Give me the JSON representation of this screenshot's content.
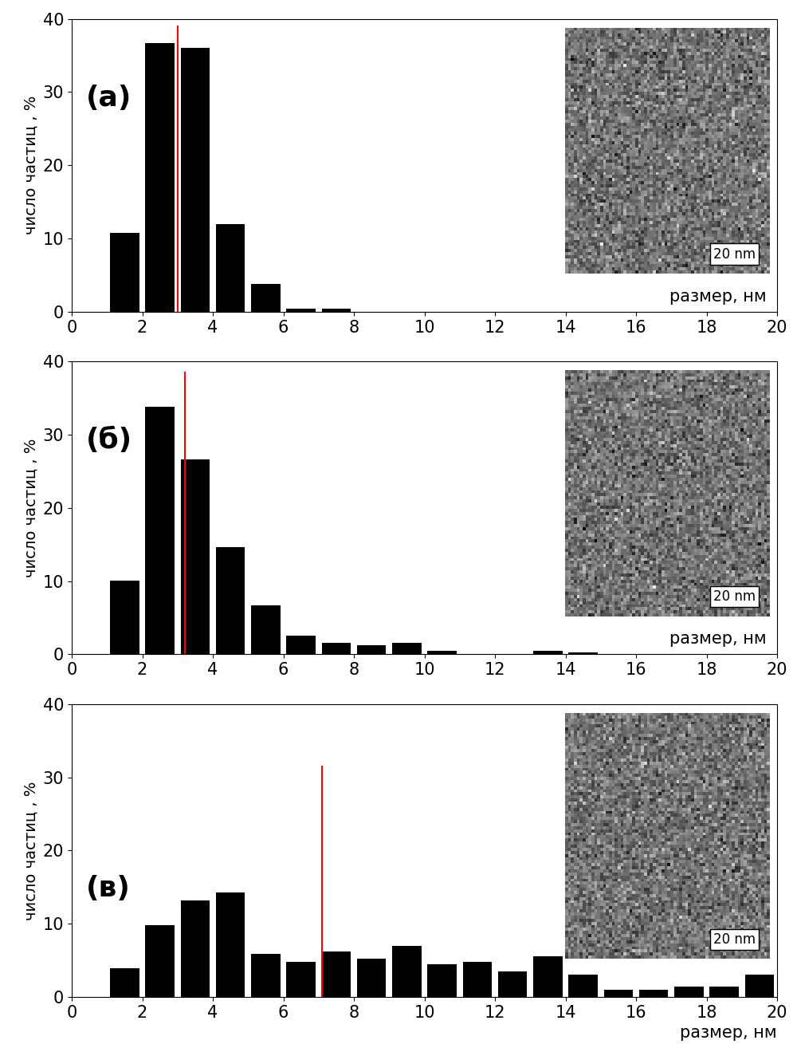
{
  "chart_data": [
    {
      "type": "histogram",
      "bins": [
        1,
        2,
        3,
        4,
        5,
        6,
        7,
        8,
        9,
        10,
        11,
        12,
        13,
        14,
        15,
        16,
        17,
        18,
        19,
        20
      ],
      "values": [
        10.8,
        36.7,
        36.0,
        12.0,
        3.8,
        0.4,
        0.4,
        0,
        0,
        0,
        0,
        0,
        0,
        0,
        0,
        0,
        0,
        0,
        0
      ],
      "color": "#000000",
      "x_label": "размер, нм",
      "y_label": "число частиц , %",
      "annotations": [
        "(а)",
        "20 nm"
      ],
      "mean_line": {
        "x": 3.0,
        "ymax": 39,
        "color": "#ff0000"
      },
      "xlim": [
        0,
        20
      ],
      "xticks": [
        0,
        2,
        4,
        6,
        8,
        10,
        12,
        14,
        16,
        18,
        20
      ],
      "ylim": [
        0,
        40
      ],
      "yticks": [
        0,
        10,
        20,
        30,
        40
      ],
      "grid": false
    },
    {
      "type": "histogram",
      "bins": [
        1,
        2,
        3,
        4,
        5,
        6,
        7,
        8,
        9,
        10,
        11,
        12,
        13,
        14,
        15,
        16,
        17,
        18,
        19,
        20
      ],
      "values": [
        10.1,
        33.8,
        26.6,
        14.6,
        6.7,
        2.6,
        1.6,
        1.3,
        1.6,
        0.5,
        0,
        0,
        0.5,
        0.3,
        0,
        0,
        0,
        0,
        0
      ],
      "color": "#000000",
      "x_label": "размер, нм",
      "y_label": "число частиц , %",
      "annotations": [
        "(б)",
        "20 nm"
      ],
      "mean_line": {
        "x": 3.2,
        "ymax": 38.5,
        "color": "#ff0000"
      },
      "xlim": [
        0,
        20
      ],
      "xticks": [
        0,
        2,
        4,
        6,
        8,
        10,
        12,
        14,
        16,
        18,
        20
      ],
      "ylim": [
        0,
        40
      ],
      "yticks": [
        0,
        10,
        20,
        30,
        40
      ],
      "grid": false
    },
    {
      "type": "histogram",
      "bins": [
        1,
        2,
        3,
        4,
        5,
        6,
        7,
        8,
        9,
        10,
        11,
        12,
        13,
        14,
        15,
        16,
        17,
        18,
        19,
        20
      ],
      "values": [
        3.9,
        9.8,
        13.2,
        14.3,
        5.9,
        4.8,
        6.2,
        5.2,
        7.0,
        4.5,
        4.8,
        3.5,
        5.6,
        3.1,
        1.0,
        1.0,
        1.4,
        1.4,
        3.1
      ],
      "color": "#000000",
      "x_label": "размер, нм",
      "y_label": "число частиц , %",
      "annotations": [
        "(в)",
        "20 nm"
      ],
      "mean_line": {
        "x": 7.1,
        "ymax": 31.5,
        "color": "#ff0000"
      },
      "xlim": [
        0,
        20
      ],
      "xticks": [
        0,
        2,
        4,
        6,
        8,
        10,
        12,
        14,
        16,
        18,
        20
      ],
      "ylim": [
        0,
        40
      ],
      "yticks": [
        0,
        10,
        20,
        30,
        40
      ],
      "grid": false
    }
  ]
}
